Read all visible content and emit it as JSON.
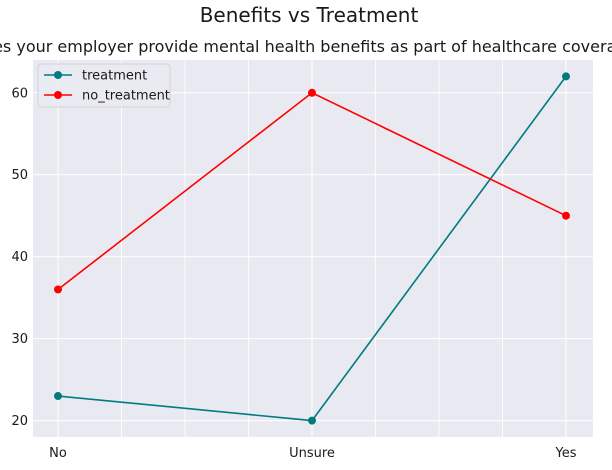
{
  "figure": {
    "title": "Benefits vs Treatment",
    "background": "#ffffff",
    "plot_background": "#e9e9f1",
    "grid_color": "#ffffff"
  },
  "chart_data": {
    "type": "line",
    "title": "does your employer provide mental health benefits as part of healthcare coverage?",
    "xlabel": "",
    "ylabel": "",
    "categories": [
      "No",
      "Unsure",
      "Yes"
    ],
    "series": [
      {
        "name": "treatment",
        "values": [
          23,
          20,
          62
        ],
        "color": "#007b7f",
        "marker": "circle"
      },
      {
        "name": "no_treatment",
        "values": [
          36,
          60,
          45
        ],
        "color": "#ff0000",
        "marker": "circle"
      }
    ],
    "ylim": [
      18,
      64
    ],
    "yticks": [
      20,
      30,
      40,
      50,
      60
    ],
    "grid": true,
    "minor_x_gridlines": 4,
    "legend": {
      "position": "top-left"
    }
  }
}
